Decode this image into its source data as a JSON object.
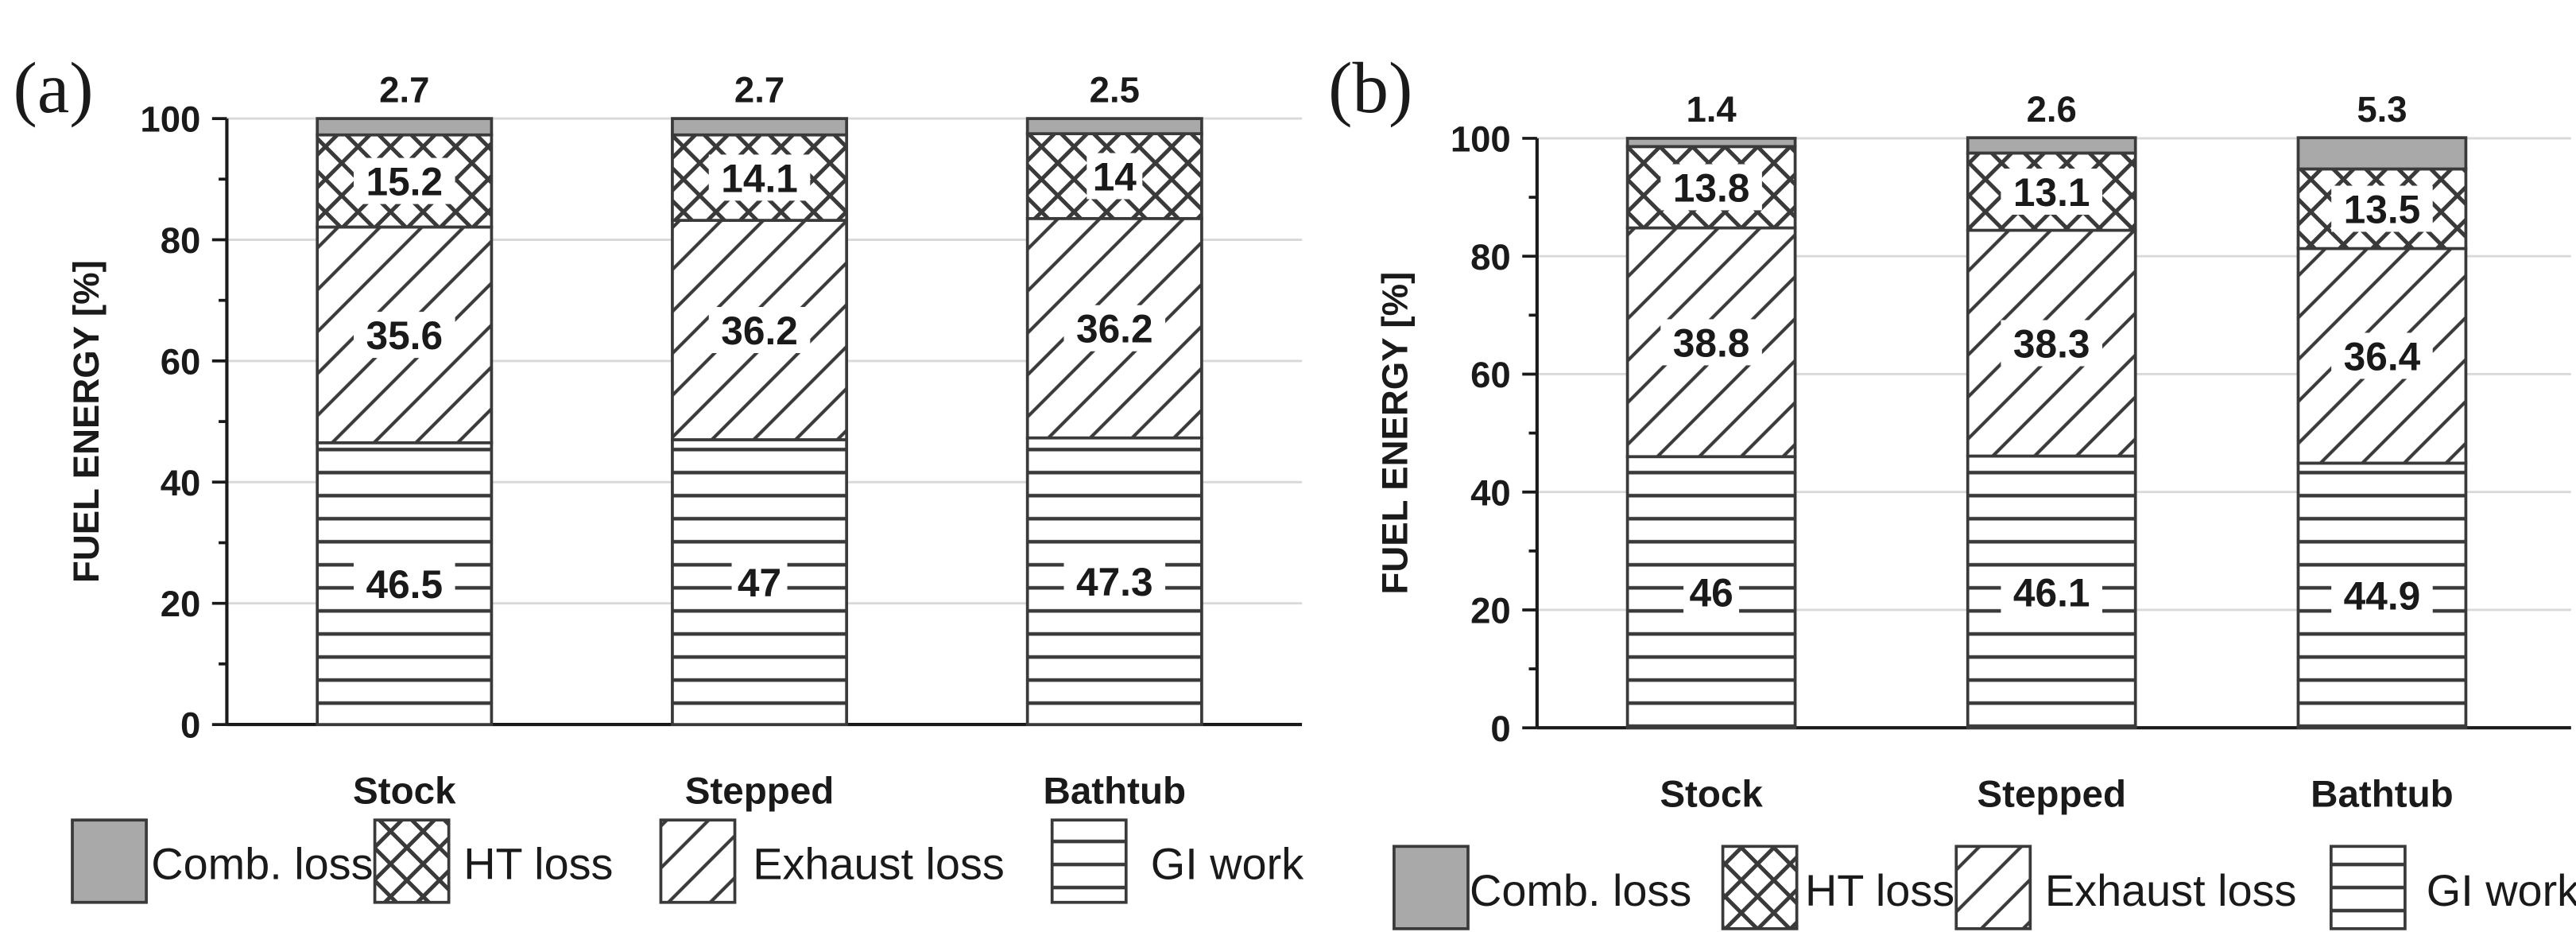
{
  "colors": {
    "comb_loss_fill": "#a9a9a9",
    "stroke": "#3a3a3a",
    "grid": "#d9d9d9"
  },
  "chart_data": [
    {
      "type": "bar",
      "stacked": true,
      "panel_label": "(a)",
      "ylabel": "FUEL ENERGY [%]",
      "xlabel": "",
      "ylim": [
        0,
        100
      ],
      "yticks": [
        0,
        20,
        40,
        60,
        80,
        100
      ],
      "grid": true,
      "categories": [
        "Stock",
        "Stepped",
        "Bathtub"
      ],
      "series": [
        {
          "name": "GI work",
          "pattern": "hlines",
          "values": [
            46.5,
            47,
            47.3
          ],
          "labels": [
            "46.5",
            "47",
            "47.3"
          ]
        },
        {
          "name": "Exhaust loss",
          "pattern": "diag",
          "values": [
            35.6,
            36.2,
            36.2
          ],
          "labels": [
            "35.6",
            "36.2",
            "36.2"
          ]
        },
        {
          "name": "HT loss",
          "pattern": "cross",
          "values": [
            15.2,
            14.1,
            14
          ],
          "labels": [
            "15.2",
            "14.1",
            "14"
          ]
        },
        {
          "name": "Comb. loss",
          "pattern": "solid",
          "values": [
            2.7,
            2.7,
            2.5
          ],
          "labels": [
            "2.7",
            "2.7",
            "2.5"
          ]
        }
      ],
      "legend": [
        "Comb. loss",
        "HT loss",
        "Exhaust loss",
        "GI work"
      ],
      "legend_placement": "bottom"
    },
    {
      "type": "bar",
      "stacked": true,
      "panel_label": "(b)",
      "ylabel": "FUEL ENERGY [%]",
      "xlabel": "",
      "ylim": [
        0,
        100
      ],
      "yticks": [
        0,
        20,
        40,
        60,
        80,
        100
      ],
      "grid": true,
      "categories": [
        "Stock",
        "Stepped",
        "Bathtub"
      ],
      "series": [
        {
          "name": "GI work",
          "pattern": "hlines",
          "values": [
            46,
            46.1,
            44.9
          ],
          "labels": [
            "46",
            "46.1",
            "44.9"
          ]
        },
        {
          "name": "Exhaust loss",
          "pattern": "diag",
          "values": [
            38.8,
            38.3,
            36.4
          ],
          "labels": [
            "38.8",
            "38.3",
            "36.4"
          ]
        },
        {
          "name": "HT loss",
          "pattern": "cross",
          "values": [
            13.8,
            13.1,
            13.5
          ],
          "labels": [
            "13.8",
            "13.1",
            "13.5"
          ]
        },
        {
          "name": "Comb. loss",
          "pattern": "solid",
          "values": [
            1.4,
            2.6,
            5.3
          ],
          "labels": [
            "1.4",
            "2.6",
            "5.3"
          ]
        }
      ],
      "legend": [
        "Comb. loss",
        "HT loss",
        "Exhaust loss",
        "GI work"
      ],
      "legend_placement": "bottom"
    }
  ]
}
